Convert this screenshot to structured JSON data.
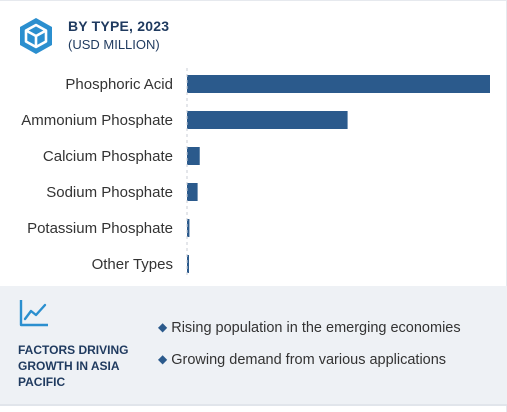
{
  "header": {
    "icon": "cube-icon",
    "title": "BY TYPE, 2023",
    "subtitle": "(USD MILLION)"
  },
  "colors": {
    "bar": "#2b5a8c",
    "heading": "#1f3a5f",
    "panel": "#eef1f5"
  },
  "chart_data": {
    "type": "bar",
    "orientation": "horizontal",
    "categories": [
      "Phosphoric Acid",
      "Ammonium Phosphate",
      "Calcium Phosphate",
      "Sodium Phosphate",
      "Potassium Phosphate",
      "Other Types"
    ],
    "values": [
      100,
      53,
      4.2,
      3.5,
      0.8,
      0.6
    ],
    "title": "BY TYPE, 2023",
    "unit": "(USD MILLION)",
    "xlim": [
      0,
      100
    ],
    "grid": false
  },
  "factors": {
    "icon": "line-chart-icon",
    "heading": "FACTORS DRIVING GROWTH IN ASIA PACIFIC",
    "items": [
      "Rising population in the emerging economies",
      "Growing demand from various applications"
    ]
  }
}
